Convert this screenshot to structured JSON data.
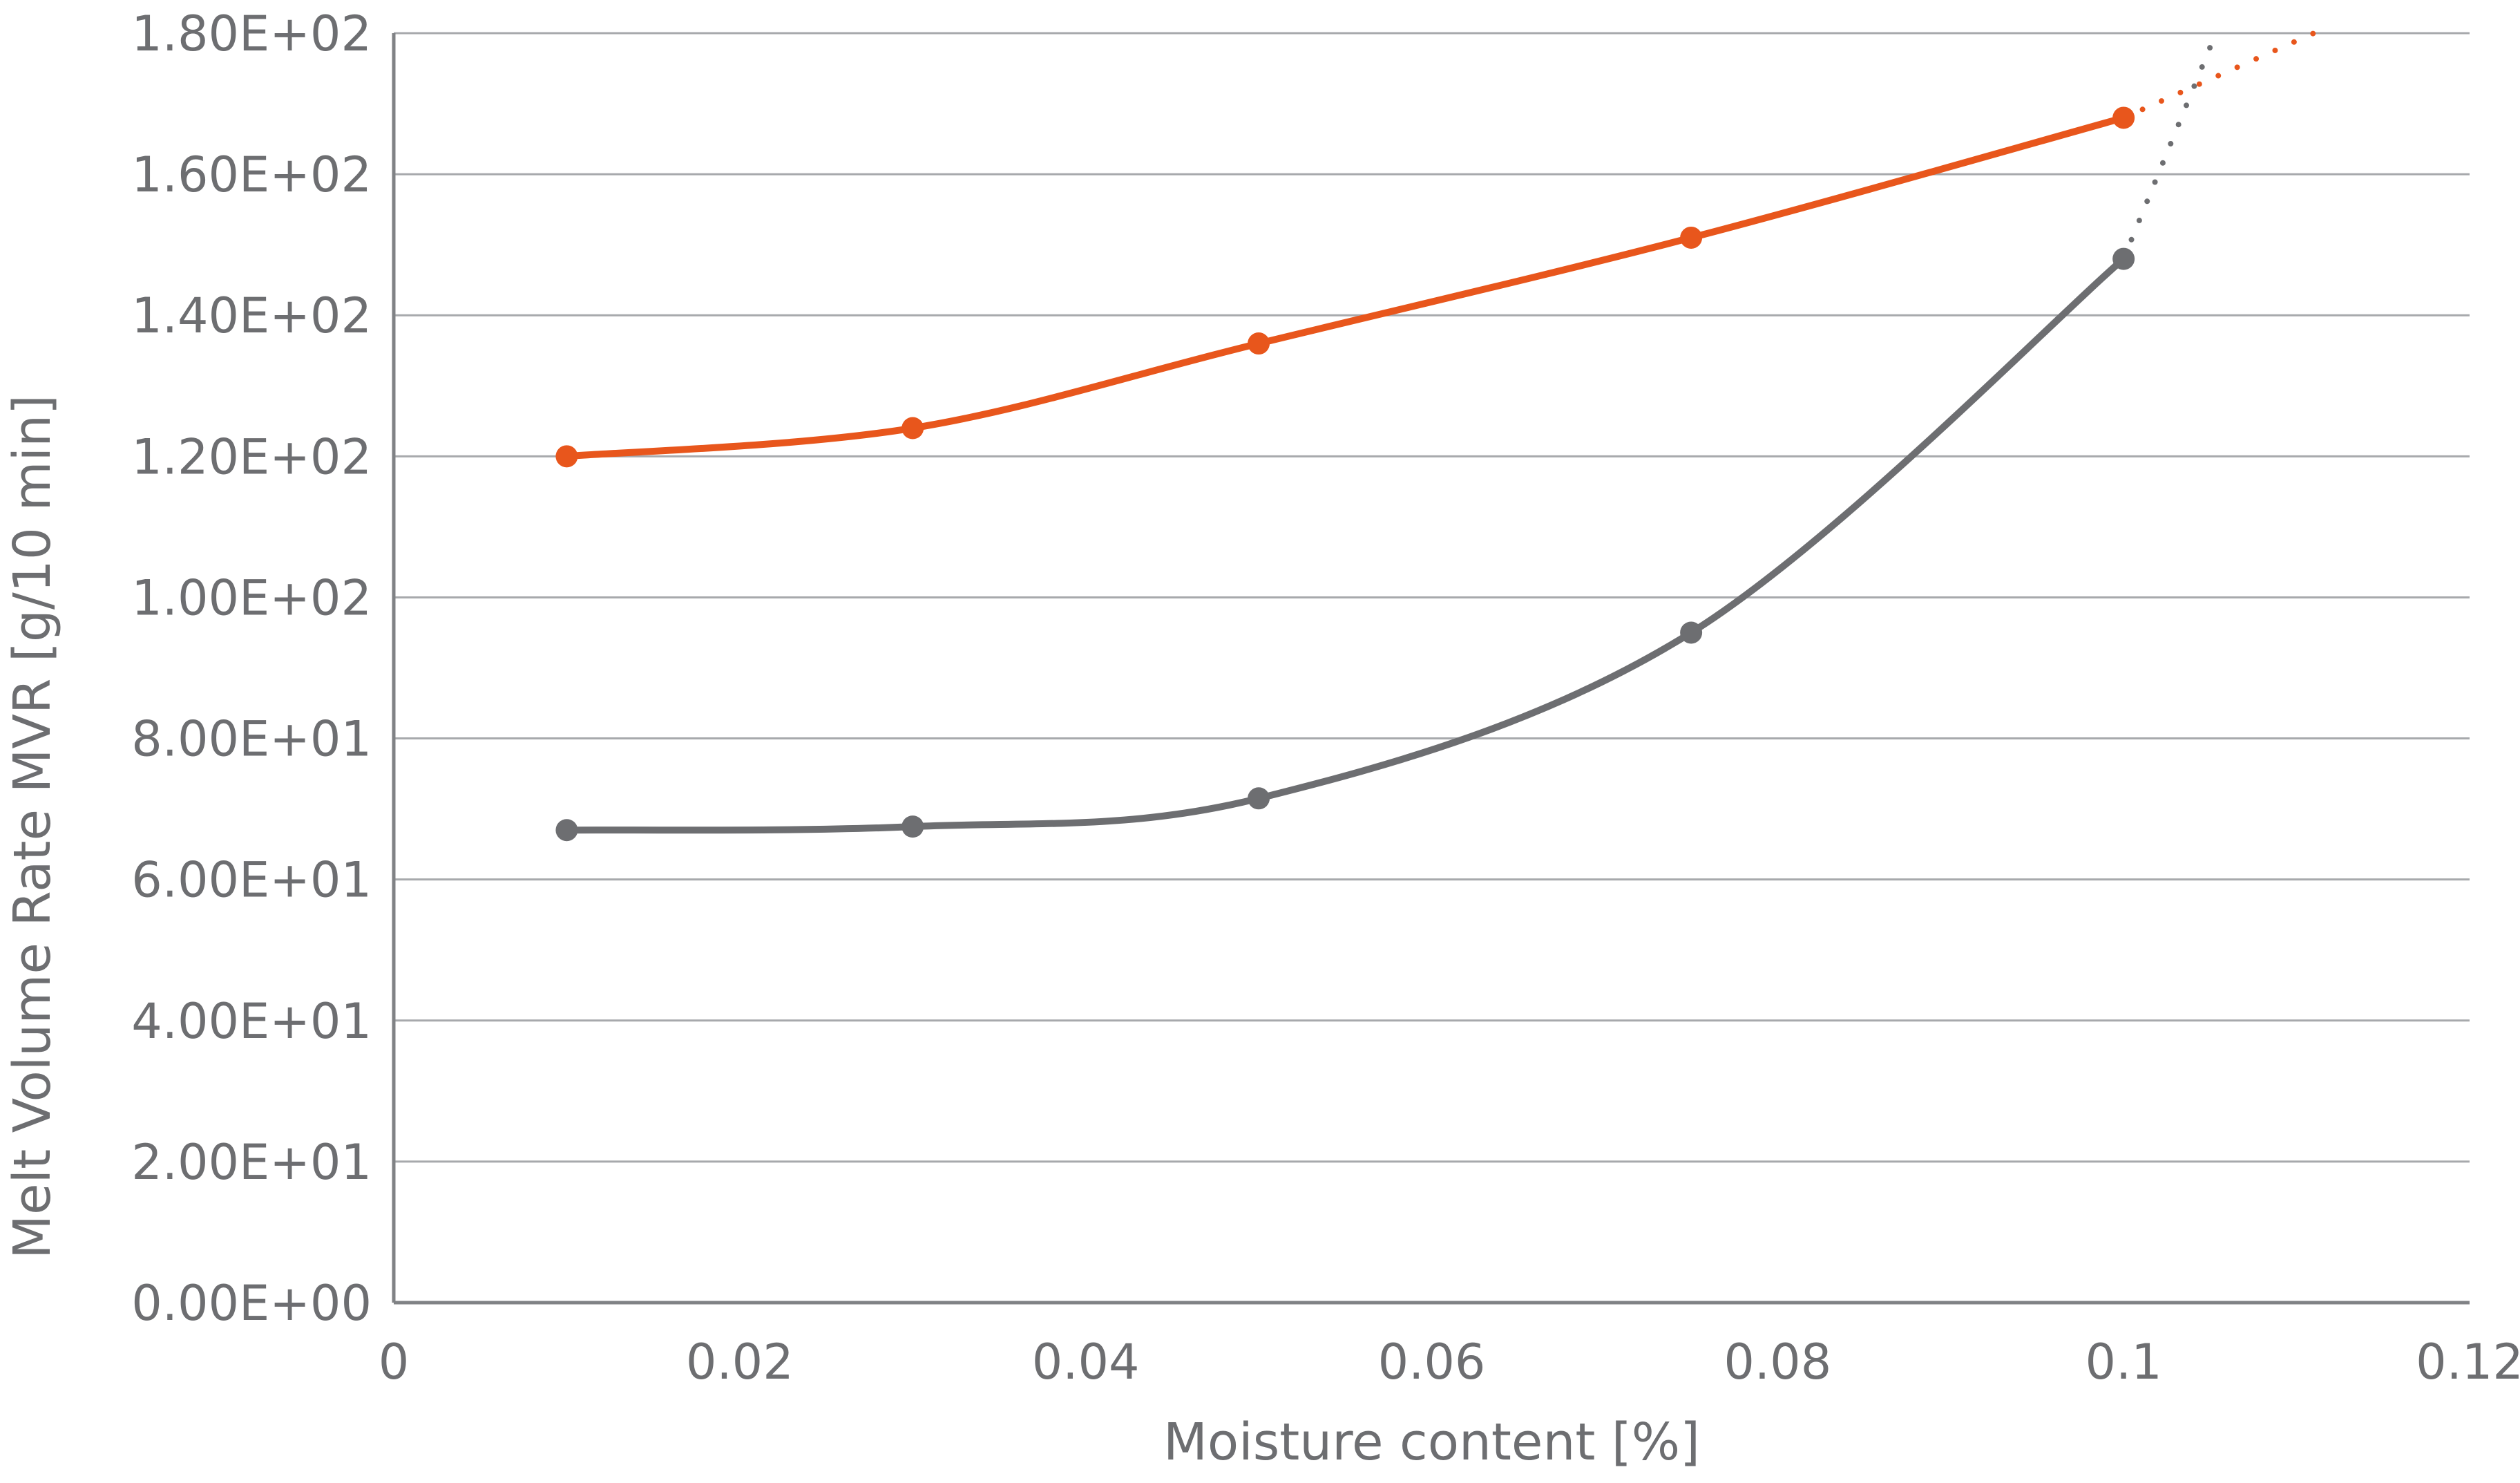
{
  "chart_data": {
    "type": "line",
    "xlabel": "Moisture content [%]",
    "ylabel": "Melt Volume Rate MVR [g/10 min]",
    "xlim": [
      0,
      0.12
    ],
    "ylim": [
      0,
      180
    ],
    "x_ticks": [
      0,
      0.02,
      0.04,
      0.06,
      0.08,
      0.1,
      0.12
    ],
    "x_tick_labels": [
      "0",
      "0.02",
      "0.04",
      "0.06",
      "0.08",
      "0.1",
      "0.12"
    ],
    "y_ticks": [
      0,
      20,
      40,
      60,
      80,
      100,
      120,
      140,
      160,
      180
    ],
    "y_tick_labels": [
      "0.00E+00",
      "2.00E+01",
      "4.00E+01",
      "6.00E+01",
      "8.00E+01",
      "1.00E+02",
      "1.20E+02",
      "1.40E+02",
      "1.60E+02",
      "1.80E+02"
    ],
    "grid": "horizontal",
    "legend": "none",
    "series": [
      {
        "color": "#e8561c",
        "x": [
          0.01,
          0.03,
          0.05,
          0.075,
          0.1
        ],
        "y": [
          120,
          124,
          136,
          151,
          168
        ],
        "trend_extension": [
          [
            0.1,
            168
          ],
          [
            0.111,
            180
          ]
        ]
      },
      {
        "color": "#6d6e71",
        "x": [
          0.01,
          0.03,
          0.05,
          0.075,
          0.1
        ],
        "y": [
          67,
          67.5,
          71.5,
          95,
          148
        ],
        "trend_extension": [
          [
            0.1,
            148
          ],
          [
            0.105,
            178
          ]
        ]
      }
    ]
  }
}
